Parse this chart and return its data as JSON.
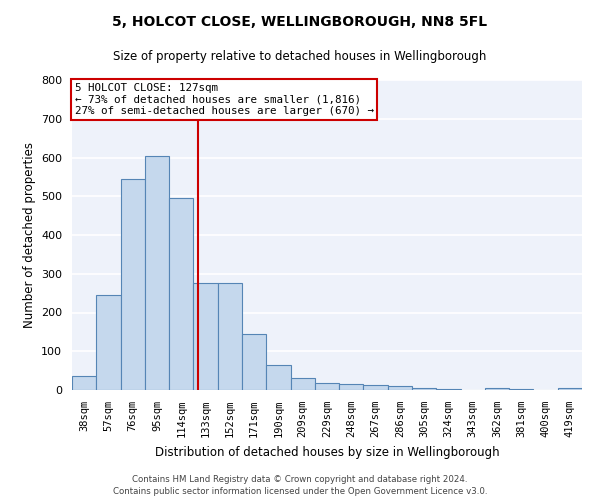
{
  "title_line1": "5, HOLCOT CLOSE, WELLINGBOROUGH, NN8 5FL",
  "title_line2": "Size of property relative to detached houses in Wellingborough",
  "xlabel": "Distribution of detached houses by size in Wellingborough",
  "ylabel": "Number of detached properties",
  "categories": [
    "38sqm",
    "57sqm",
    "76sqm",
    "95sqm",
    "114sqm",
    "133sqm",
    "152sqm",
    "171sqm",
    "190sqm",
    "209sqm",
    "229sqm",
    "248sqm",
    "267sqm",
    "286sqm",
    "305sqm",
    "324sqm",
    "343sqm",
    "362sqm",
    "381sqm",
    "400sqm",
    "419sqm"
  ],
  "values": [
    35,
    245,
    545,
    605,
    495,
    275,
    275,
    145,
    65,
    30,
    18,
    15,
    12,
    10,
    5,
    3,
    1,
    5,
    2,
    1,
    4
  ],
  "bar_color": "#c5d8ed",
  "bar_edge_color": "#5585b5",
  "background_color": "#eef2fa",
  "grid_color": "#ffffff",
  "annotation_text": "5 HOLCOT CLOSE: 127sqm\n← 73% of detached houses are smaller (1,816)\n27% of semi-detached houses are larger (670) →",
  "vline_x_index": 4.68,
  "vline_color": "#cc0000",
  "annotation_box_edge": "#cc0000",
  "ylim": [
    0,
    800
  ],
  "yticks": [
    0,
    100,
    200,
    300,
    400,
    500,
    600,
    700,
    800
  ],
  "footer_line1": "Contains HM Land Registry data © Crown copyright and database right 2024.",
  "footer_line2": "Contains public sector information licensed under the Open Government Licence v3.0."
}
